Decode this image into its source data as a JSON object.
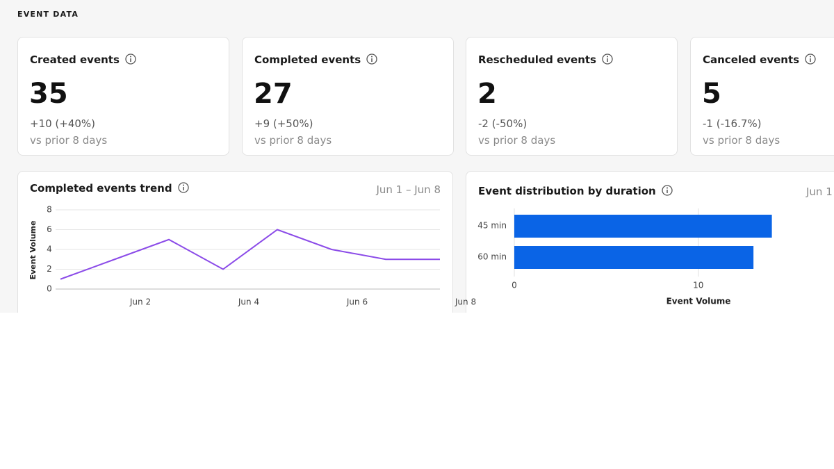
{
  "header": {
    "title": "EVENT DATA"
  },
  "cards": [
    {
      "title": "Created events",
      "value": 35,
      "change": "+10 (+40%)",
      "period": "vs prior 8 days"
    },
    {
      "title": "Completed events",
      "value": 27,
      "change": "+9 (+50%)",
      "period": "vs prior 8 days"
    },
    {
      "title": "Rescheduled events",
      "value": 2,
      "change": "-2 (-50%)",
      "period": "vs prior 8 days"
    },
    {
      "title": "Canceled events",
      "value": 5,
      "change": "-1 (-16.7%)",
      "period": "vs prior 8 days"
    }
  ],
  "chart_data": [
    {
      "type": "line",
      "title": "Completed events trend",
      "date_range": "Jun 1 – Jun 8",
      "ylabel": "Event Volume",
      "categories": [
        null,
        "Jun 2",
        null,
        "Jun 4",
        null,
        "Jun 6",
        null,
        "Jun 8"
      ],
      "values": [
        1,
        3,
        5,
        2,
        6,
        4,
        3,
        3
      ],
      "color": "#8b4be8",
      "ylim": [
        0,
        8
      ],
      "yticks": [
        0,
        2,
        4,
        6,
        8
      ],
      "grid": true
    },
    {
      "type": "bar",
      "orientation": "horizontal",
      "title": "Event distribution by duration",
      "date_range": "Jun 1",
      "xlabel": "Event Volume",
      "categories": [
        "45 min",
        "60 min"
      ],
      "values": [
        14,
        13
      ],
      "color": "#0a64e6",
      "xlim": [
        0,
        17
      ],
      "xticks": [
        0,
        10
      ],
      "grid": true
    }
  ]
}
